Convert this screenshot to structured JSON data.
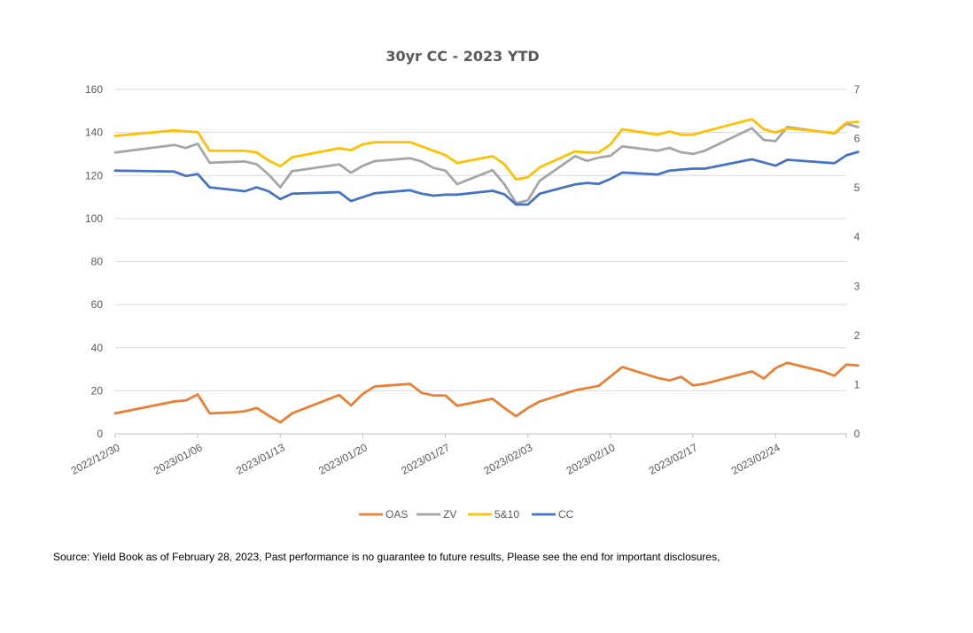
{
  "source_note": "Source: Yield Book as of February 28, 2023, Past performance is no guarantee to future results, Please see the end for important disclosures,",
  "chart_data": {
    "type": "line",
    "title": "30yr CC - 2023 YTD",
    "xlabel": "",
    "ylabel": "",
    "x_start": "2022-12-30",
    "x_end": "2023-03-02",
    "x_tick_labels": [
      "2022/12/30",
      "2023/01/06",
      "2023/01/13",
      "2023/01/20",
      "2023/01/27",
      "2023/02/03",
      "2023/02/10",
      "2023/02/17",
      "2023/02/24"
    ],
    "ylim_left": [
      0,
      160
    ],
    "y_ticks_left": [
      0,
      20,
      40,
      60,
      80,
      100,
      120,
      140,
      160
    ],
    "ylim_right": [
      0,
      7
    ],
    "y_ticks_right": [
      0,
      1,
      2,
      3,
      4,
      5,
      6,
      7
    ],
    "grid": true,
    "legend_position": "bottom",
    "series": [
      {
        "name": "OAS",
        "axis": "left",
        "color": "#ED7D31",
        "points": [
          [
            "2022-12-30",
            9.5
          ],
          [
            "2023-01-04",
            15
          ],
          [
            "2023-01-05",
            15.5
          ],
          [
            "2023-01-06",
            18.3
          ],
          [
            "2023-01-07",
            9.5
          ],
          [
            "2023-01-09",
            10
          ],
          [
            "2023-01-10",
            10.5
          ],
          [
            "2023-01-11",
            12
          ],
          [
            "2023-01-12",
            8.5
          ],
          [
            "2023-01-13",
            5.3
          ],
          [
            "2023-01-14",
            9.5
          ],
          [
            "2023-01-18",
            18
          ],
          [
            "2023-01-19",
            13.2
          ],
          [
            "2023-01-20",
            18.5
          ],
          [
            "2023-01-21",
            22
          ],
          [
            "2023-01-24",
            23.2
          ],
          [
            "2023-01-25",
            19
          ],
          [
            "2023-01-26",
            17.8
          ],
          [
            "2023-01-27",
            17.8
          ],
          [
            "2023-01-28",
            13
          ],
          [
            "2023-01-31",
            16.3
          ],
          [
            "2023-02-01",
            12
          ],
          [
            "2023-02-02",
            8.2
          ],
          [
            "2023-02-03",
            12
          ],
          [
            "2023-02-04",
            15
          ],
          [
            "2023-02-07",
            20.2
          ],
          [
            "2023-02-09",
            22.3
          ],
          [
            "2023-02-11",
            31
          ],
          [
            "2023-02-14",
            26
          ],
          [
            "2023-02-15",
            24.8
          ],
          [
            "2023-02-16",
            26.5
          ],
          [
            "2023-02-17",
            22.5
          ],
          [
            "2023-02-18",
            23.3
          ],
          [
            "2023-02-22",
            29
          ],
          [
            "2023-02-23",
            25.7
          ],
          [
            "2023-02-24",
            30.5
          ],
          [
            "2023-02-25",
            33
          ],
          [
            "2023-02-28",
            29
          ],
          [
            "2023-03-01",
            27
          ],
          [
            "2023-03-02",
            32.2
          ],
          [
            "2023-03-03",
            31.7
          ]
        ]
      },
      {
        "name": "ZV",
        "axis": "left",
        "color": "#A5A5A5",
        "points": [
          [
            "2022-12-30",
            130.7
          ],
          [
            "2023-01-04",
            134.2
          ],
          [
            "2023-01-05",
            132.8
          ],
          [
            "2023-01-06",
            134.8
          ],
          [
            "2023-01-07",
            126
          ],
          [
            "2023-01-10",
            126.5
          ],
          [
            "2023-01-11",
            125.2
          ],
          [
            "2023-01-12",
            120.5
          ],
          [
            "2023-01-13",
            114.5
          ],
          [
            "2023-01-14",
            122
          ],
          [
            "2023-01-18",
            125.2
          ],
          [
            "2023-01-19",
            121.3
          ],
          [
            "2023-01-20",
            124.5
          ],
          [
            "2023-01-21",
            126.7
          ],
          [
            "2023-01-24",
            128
          ],
          [
            "2023-01-25",
            126.5
          ],
          [
            "2023-01-26",
            123.5
          ],
          [
            "2023-01-27",
            122.3
          ],
          [
            "2023-01-28",
            116
          ],
          [
            "2023-01-31",
            122.5
          ],
          [
            "2023-02-01",
            116
          ],
          [
            "2023-02-02",
            107.2
          ],
          [
            "2023-02-03",
            108.5
          ],
          [
            "2023-02-04",
            117.5
          ],
          [
            "2023-02-07",
            129
          ],
          [
            "2023-02-08",
            126.8
          ],
          [
            "2023-02-09",
            128.3
          ],
          [
            "2023-02-10",
            129.2
          ],
          [
            "2023-02-11",
            133.5
          ],
          [
            "2023-02-14",
            131.5
          ],
          [
            "2023-02-15",
            132.8
          ],
          [
            "2023-02-16",
            130.8
          ],
          [
            "2023-02-17",
            130
          ],
          [
            "2023-02-18",
            131.5
          ],
          [
            "2023-02-22",
            142
          ],
          [
            "2023-02-23",
            136.5
          ],
          [
            "2023-02-24",
            136
          ],
          [
            "2023-02-25",
            142.5
          ],
          [
            "2023-03-01",
            139.5
          ],
          [
            "2023-03-02",
            144
          ],
          [
            "2023-03-03",
            142.5
          ]
        ]
      },
      {
        "name": "5&10",
        "axis": "left",
        "color": "#FFC000",
        "points": [
          [
            "2022-12-30",
            138.4
          ],
          [
            "2023-01-04",
            141
          ],
          [
            "2023-01-05",
            140.5
          ],
          [
            "2023-01-06",
            140.2
          ],
          [
            "2023-01-07",
            131.5
          ],
          [
            "2023-01-10",
            131.5
          ],
          [
            "2023-01-11",
            130.7
          ],
          [
            "2023-01-12",
            127
          ],
          [
            "2023-01-13",
            124.3
          ],
          [
            "2023-01-14",
            128.5
          ],
          [
            "2023-01-18",
            132.7
          ],
          [
            "2023-01-19",
            131.8
          ],
          [
            "2023-01-20",
            134.5
          ],
          [
            "2023-01-21",
            135.5
          ],
          [
            "2023-01-24",
            135.5
          ],
          [
            "2023-01-25",
            133.5
          ],
          [
            "2023-01-27",
            129.5
          ],
          [
            "2023-01-28",
            125.8
          ],
          [
            "2023-01-31",
            129
          ],
          [
            "2023-02-01",
            125.3
          ],
          [
            "2023-02-02",
            118.2
          ],
          [
            "2023-02-03",
            119.2
          ],
          [
            "2023-02-04",
            123.8
          ],
          [
            "2023-02-07",
            131.2
          ],
          [
            "2023-02-08",
            130.7
          ],
          [
            "2023-02-09",
            130.7
          ],
          [
            "2023-02-10",
            134.5
          ],
          [
            "2023-02-11",
            141.5
          ],
          [
            "2023-02-14",
            139
          ],
          [
            "2023-02-15",
            140.5
          ],
          [
            "2023-02-16",
            139
          ],
          [
            "2023-02-17",
            139
          ],
          [
            "2023-02-18",
            140.5
          ],
          [
            "2023-02-22",
            146.2
          ],
          [
            "2023-02-23",
            141.5
          ],
          [
            "2023-02-24",
            140
          ],
          [
            "2023-02-25",
            142
          ],
          [
            "2023-03-01",
            139.8
          ],
          [
            "2023-03-02",
            144.5
          ],
          [
            "2023-03-03",
            145
          ]
        ]
      },
      {
        "name": "CC",
        "axis": "right",
        "color": "#4472C4",
        "points": [
          [
            "2022-12-30",
            5.35
          ],
          [
            "2023-01-04",
            5.33
          ],
          [
            "2023-01-05",
            5.24
          ],
          [
            "2023-01-06",
            5.28
          ],
          [
            "2023-01-07",
            5.01
          ],
          [
            "2023-01-10",
            4.93
          ],
          [
            "2023-01-11",
            5.01
          ],
          [
            "2023-01-12",
            4.93
          ],
          [
            "2023-01-13",
            4.77
          ],
          [
            "2023-01-14",
            4.88
          ],
          [
            "2023-01-18",
            4.91
          ],
          [
            "2023-01-19",
            4.73
          ],
          [
            "2023-01-20",
            4.81
          ],
          [
            "2023-01-21",
            4.89
          ],
          [
            "2023-01-24",
            4.95
          ],
          [
            "2023-01-25",
            4.88
          ],
          [
            "2023-01-26",
            4.84
          ],
          [
            "2023-01-27",
            4.86
          ],
          [
            "2023-01-28",
            4.86
          ],
          [
            "2023-01-31",
            4.94
          ],
          [
            "2023-02-01",
            4.87
          ],
          [
            "2023-02-02",
            4.66
          ],
          [
            "2023-02-03",
            4.66
          ],
          [
            "2023-02-04",
            4.88
          ],
          [
            "2023-02-07",
            5.07
          ],
          [
            "2023-02-08",
            5.1
          ],
          [
            "2023-02-09",
            5.08
          ],
          [
            "2023-02-10",
            5.18
          ],
          [
            "2023-02-11",
            5.31
          ],
          [
            "2023-02-14",
            5.27
          ],
          [
            "2023-02-15",
            5.35
          ],
          [
            "2023-02-17",
            5.39
          ],
          [
            "2023-02-18",
            5.39
          ],
          [
            "2023-02-22",
            5.58
          ],
          [
            "2023-02-24",
            5.45
          ],
          [
            "2023-02-25",
            5.57
          ],
          [
            "2023-03-01",
            5.5
          ],
          [
            "2023-03-02",
            5.66
          ],
          [
            "2023-03-03",
            5.73
          ]
        ]
      }
    ]
  }
}
